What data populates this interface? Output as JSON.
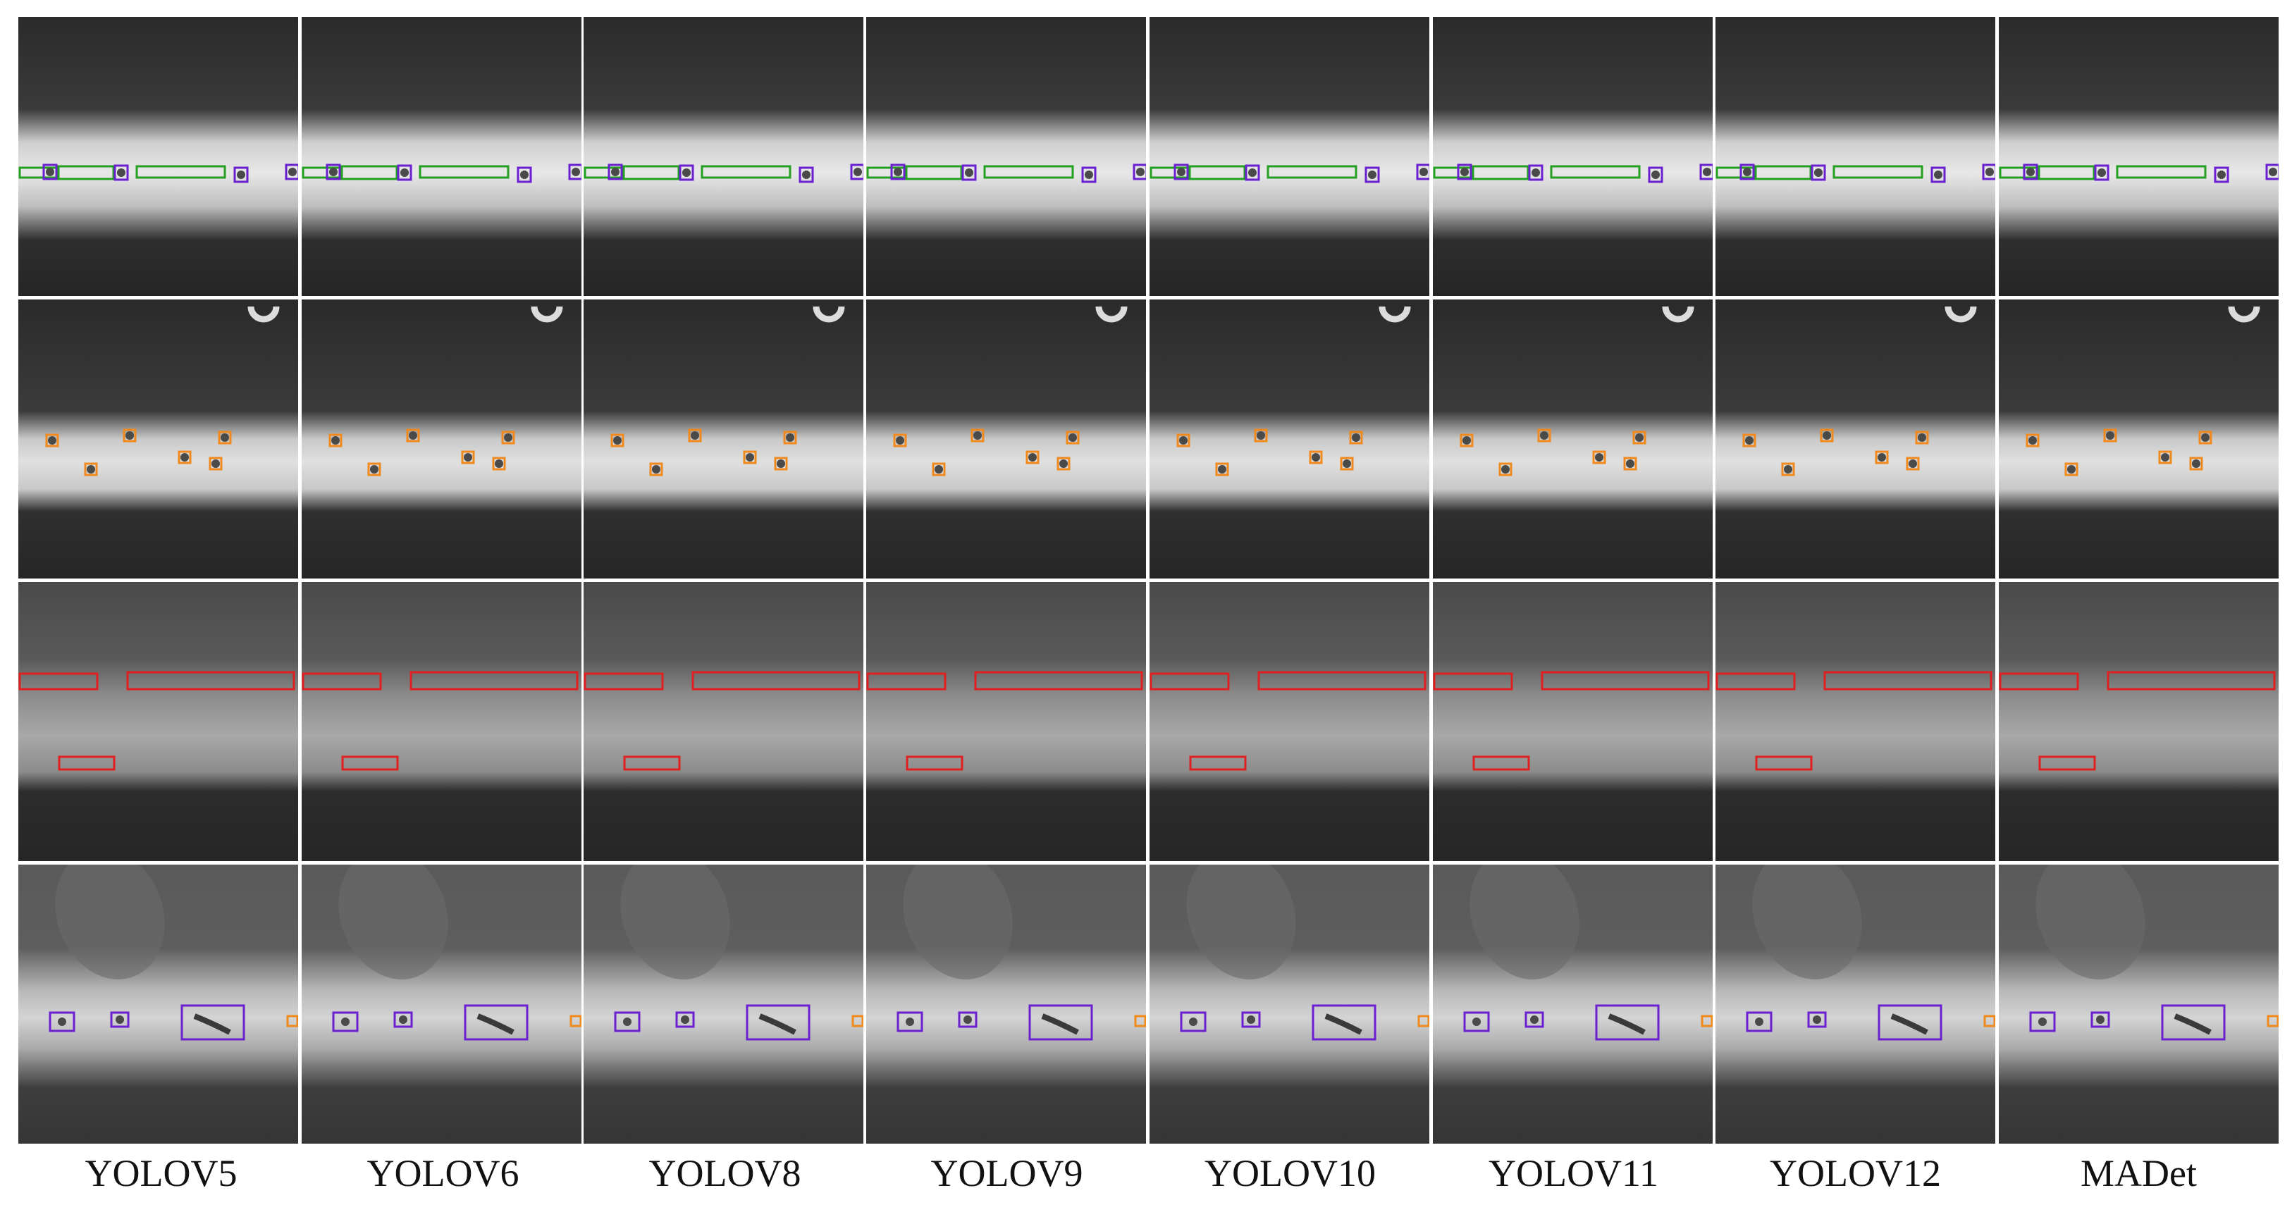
{
  "models": [
    "YOLOV5",
    "YOLOV6",
    "YOLOV8",
    "YOLOV9",
    "YOLOV10",
    "YOLOV11",
    "YOLOV12",
    "MADet"
  ],
  "rows": [
    {
      "name": "row-1",
      "box_colors": [
        "#22a022",
        "#6a1fd1"
      ]
    },
    {
      "name": "row-2",
      "box_colors": [
        "#f08a1c"
      ]
    },
    {
      "name": "row-3",
      "box_colors": [
        "#e02020"
      ]
    },
    {
      "name": "row-4",
      "box_colors": [
        "#7a2bd6",
        "#f08a1c"
      ]
    }
  ],
  "colors": {
    "green": "#22a022",
    "purple": "#6a1fd1",
    "orange": "#f08a1c",
    "red": "#e02020"
  }
}
